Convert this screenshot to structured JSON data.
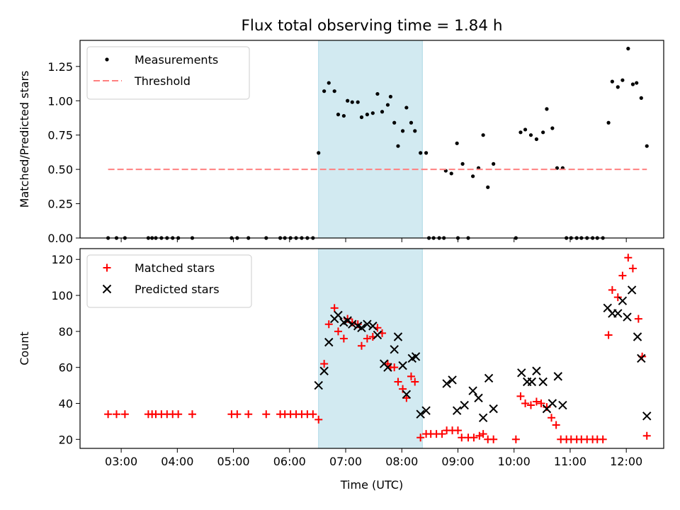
{
  "title": "Flux total observing time = 1.84 h",
  "chart_data": [
    {
      "type": "scatter",
      "ylabel": "Matched/Predicted stars",
      "xlabel": "",
      "xlim": [
        "02:16",
        "12:40"
      ],
      "ylim": [
        0,
        1.44
      ],
      "yticks": [
        0.0,
        0.25,
        0.5,
        0.75,
        1.0,
        1.25
      ],
      "ytick_labels": [
        "0.00",
        "0.25",
        "0.50",
        "0.75",
        "1.00",
        "1.25"
      ],
      "legend_position": "top-left",
      "legend": [
        "Measurements",
        "Threshold"
      ],
      "shaded_span": {
        "x": [
          "06:31",
          "08:22"
        ],
        "color": "#add8e6"
      },
      "series": [
        {
          "name": "Measurements",
          "marker": "dot",
          "color": "#000000",
          "points": [
            [
              "02:46",
              0
            ],
            [
              "02:55",
              0
            ],
            [
              "03:04",
              0
            ],
            [
              "03:29",
              0
            ],
            [
              "03:33",
              0
            ],
            [
              "03:37",
              0
            ],
            [
              "03:43",
              0
            ],
            [
              "03:49",
              0
            ],
            [
              "03:55",
              0
            ],
            [
              "04:01",
              0
            ],
            [
              "04:16",
              0
            ],
            [
              "04:58",
              0
            ],
            [
              "05:04",
              0
            ],
            [
              "05:16",
              0
            ],
            [
              "05:35",
              0
            ],
            [
              "05:50",
              0
            ],
            [
              "05:55",
              0
            ],
            [
              "06:01",
              0
            ],
            [
              "06:07",
              0
            ],
            [
              "06:13",
              0
            ],
            [
              "06:19",
              0
            ],
            [
              "06:25",
              0
            ],
            [
              "06:31",
              0.62
            ],
            [
              "06:37",
              1.07
            ],
            [
              "06:42",
              1.13
            ],
            [
              "06:48",
              1.07
            ],
            [
              "06:52",
              0.9
            ],
            [
              "06:58",
              0.89
            ],
            [
              "07:02",
              1.0
            ],
            [
              "07:07",
              0.99
            ],
            [
              "07:13",
              0.99
            ],
            [
              "07:17",
              0.88
            ],
            [
              "07:23",
              0.9
            ],
            [
              "07:29",
              0.91
            ],
            [
              "07:34",
              1.05
            ],
            [
              "07:39",
              0.92
            ],
            [
              "07:45",
              0.97
            ],
            [
              "07:48",
              1.03
            ],
            [
              "07:52",
              0.84
            ],
            [
              "07:56",
              0.67
            ],
            [
              "08:01",
              0.78
            ],
            [
              "08:05",
              0.95
            ],
            [
              "08:10",
              0.84
            ],
            [
              "08:14",
              0.78
            ],
            [
              "08:20",
              0.62
            ],
            [
              "08:26",
              0.62
            ],
            [
              "08:29",
              0
            ],
            [
              "08:34",
              0
            ],
            [
              "08:40",
              0
            ],
            [
              "08:45",
              0
            ],
            [
              "08:47",
              0.49
            ],
            [
              "08:53",
              0.47
            ],
            [
              "08:59",
              0.69
            ],
            [
              "09:00",
              0
            ],
            [
              "09:05",
              0.54
            ],
            [
              "09:11",
              0
            ],
            [
              "09:16",
              0.45
            ],
            [
              "09:22",
              0.51
            ],
            [
              "09:27",
              0.75
            ],
            [
              "09:32",
              0.37
            ],
            [
              "09:38",
              0.54
            ],
            [
              "10:02",
              0
            ],
            [
              "10:07",
              0.77
            ],
            [
              "10:12",
              0.79
            ],
            [
              "10:18",
              0.75
            ],
            [
              "10:24",
              0.72
            ],
            [
              "10:31",
              0.77
            ],
            [
              "10:35",
              0.94
            ],
            [
              "10:41",
              0.8
            ],
            [
              "10:46",
              0.51
            ],
            [
              "10:52",
              0.51
            ],
            [
              "10:56",
              0
            ],
            [
              "11:01",
              0
            ],
            [
              "11:07",
              0
            ],
            [
              "11:12",
              0
            ],
            [
              "11:18",
              0
            ],
            [
              "11:24",
              0
            ],
            [
              "11:29",
              0
            ],
            [
              "11:35",
              0
            ],
            [
              "11:41",
              0.84
            ],
            [
              "11:45",
              1.14
            ],
            [
              "11:51",
              1.1
            ],
            [
              "11:56",
              1.15
            ],
            [
              "12:02",
              1.38
            ],
            [
              "12:07",
              1.12
            ],
            [
              "12:11",
              1.13
            ],
            [
              "12:16",
              1.02
            ],
            [
              "12:22",
              0.67
            ]
          ]
        },
        {
          "name": "Threshold",
          "style": "dashed",
          "color": "#ff8080",
          "points": [
            [
              "02:46",
              0.5
            ],
            [
              "12:22",
              0.5
            ]
          ]
        }
      ]
    },
    {
      "type": "scatter",
      "ylabel": "Count",
      "xlabel": "Time (UTC)",
      "xlim": [
        "02:16",
        "12:40"
      ],
      "ylim": [
        15,
        126
      ],
      "yticks": [
        20,
        40,
        60,
        80,
        100,
        120
      ],
      "ytick_labels": [
        "20",
        "40",
        "60",
        "80",
        "100",
        "120"
      ],
      "xticks": [
        "03:00",
        "04:00",
        "05:00",
        "06:00",
        "07:00",
        "08:00",
        "09:00",
        "10:00",
        "11:00",
        "12:00"
      ],
      "legend_position": "top-left",
      "legend": [
        "Matched stars",
        "Predicted stars"
      ],
      "shaded_span": {
        "x": [
          "06:31",
          "08:22"
        ],
        "color": "#add8e6"
      },
      "series": [
        {
          "name": "Matched stars",
          "marker": "plus",
          "color": "#ff0000",
          "points": [
            [
              "02:46",
              34
            ],
            [
              "02:55",
              34
            ],
            [
              "03:04",
              34
            ],
            [
              "03:29",
              34
            ],
            [
              "03:33",
              34
            ],
            [
              "03:37",
              34
            ],
            [
              "03:43",
              34
            ],
            [
              "03:49",
              34
            ],
            [
              "03:55",
              34
            ],
            [
              "04:01",
              34
            ],
            [
              "04:16",
              34
            ],
            [
              "04:58",
              34
            ],
            [
              "05:04",
              34
            ],
            [
              "05:16",
              34
            ],
            [
              "05:35",
              34
            ],
            [
              "05:50",
              34
            ],
            [
              "05:55",
              34
            ],
            [
              "06:01",
              34
            ],
            [
              "06:07",
              34
            ],
            [
              "06:13",
              34
            ],
            [
              "06:19",
              34
            ],
            [
              "06:25",
              34
            ],
            [
              "06:31",
              31
            ],
            [
              "06:37",
              62
            ],
            [
              "06:42",
              84
            ],
            [
              "06:48",
              93
            ],
            [
              "06:52",
              80
            ],
            [
              "06:58",
              76
            ],
            [
              "07:02",
              87
            ],
            [
              "07:07",
              85
            ],
            [
              "07:13",
              84
            ],
            [
              "07:17",
              72
            ],
            [
              "07:23",
              76
            ],
            [
              "07:29",
              77
            ],
            [
              "07:34",
              82
            ],
            [
              "07:39",
              79
            ],
            [
              "07:45",
              62
            ],
            [
              "07:48",
              60
            ],
            [
              "07:52",
              60
            ],
            [
              "07:56",
              52
            ],
            [
              "08:01",
              48
            ],
            [
              "08:05",
              43
            ],
            [
              "08:10",
              55
            ],
            [
              "08:14",
              52
            ],
            [
              "08:20",
              21
            ],
            [
              "08:26",
              23
            ],
            [
              "08:31",
              23
            ],
            [
              "08:37",
              23
            ],
            [
              "08:43",
              23
            ],
            [
              "08:48",
              25
            ],
            [
              "08:54",
              25
            ],
            [
              "09:00",
              25
            ],
            [
              "09:04",
              21
            ],
            [
              "09:11",
              21
            ],
            [
              "09:17",
              21
            ],
            [
              "09:23",
              22
            ],
            [
              "09:27",
              23
            ],
            [
              "09:32",
              20
            ],
            [
              "09:38",
              20
            ],
            [
              "10:02",
              20
            ],
            [
              "10:07",
              44
            ],
            [
              "10:12",
              40
            ],
            [
              "10:18",
              39
            ],
            [
              "10:24",
              41
            ],
            [
              "10:29",
              40
            ],
            [
              "10:35",
              38
            ],
            [
              "10:40",
              32
            ],
            [
              "10:45",
              28
            ],
            [
              "10:50",
              20
            ],
            [
              "10:56",
              20
            ],
            [
              "11:01",
              20
            ],
            [
              "11:07",
              20
            ],
            [
              "11:12",
              20
            ],
            [
              "11:18",
              20
            ],
            [
              "11:24",
              20
            ],
            [
              "11:29",
              20
            ],
            [
              "11:35",
              20
            ],
            [
              "11:41",
              78
            ],
            [
              "11:45",
              103
            ],
            [
              "11:51",
              99
            ],
            [
              "11:56",
              111
            ],
            [
              "12:02",
              121
            ],
            [
              "12:07",
              115
            ],
            [
              "12:13",
              87
            ],
            [
              "12:17",
              66
            ],
            [
              "12:22",
              22
            ]
          ]
        },
        {
          "name": "Predicted stars",
          "marker": "x",
          "color": "#000000",
          "points": [
            [
              "06:31",
              50
            ],
            [
              "06:37",
              58
            ],
            [
              "06:42",
              74
            ],
            [
              "06:48",
              87
            ],
            [
              "06:52",
              89
            ],
            [
              "06:58",
              85
            ],
            [
              "07:02",
              86
            ],
            [
              "07:07",
              84
            ],
            [
              "07:13",
              83
            ],
            [
              "07:17",
              82
            ],
            [
              "07:23",
              84
            ],
            [
              "07:29",
              83
            ],
            [
              "07:34",
              78
            ],
            [
              "07:41",
              62
            ],
            [
              "07:45",
              60
            ],
            [
              "07:52",
              70
            ],
            [
              "07:56",
              77
            ],
            [
              "08:01",
              61
            ],
            [
              "08:05",
              45
            ],
            [
              "08:11",
              65
            ],
            [
              "08:15",
              66
            ],
            [
              "08:20",
              34
            ],
            [
              "08:26",
              36
            ],
            [
              "08:48",
              51
            ],
            [
              "08:54",
              53
            ],
            [
              "08:59",
              36
            ],
            [
              "09:07",
              39
            ],
            [
              "09:16",
              47
            ],
            [
              "09:22",
              43
            ],
            [
              "09:27",
              32
            ],
            [
              "09:33",
              54
            ],
            [
              "09:38",
              37
            ],
            [
              "10:08",
              57
            ],
            [
              "10:14",
              52
            ],
            [
              "10:19",
              52
            ],
            [
              "10:24",
              58
            ],
            [
              "10:31",
              52
            ],
            [
              "10:35",
              37
            ],
            [
              "10:41",
              40
            ],
            [
              "10:47",
              55
            ],
            [
              "10:52",
              39
            ],
            [
              "11:40",
              93
            ],
            [
              "11:45",
              90
            ],
            [
              "11:51",
              90
            ],
            [
              "11:56",
              97
            ],
            [
              "12:01",
              88
            ],
            [
              "12:06",
              103
            ],
            [
              "12:12",
              77
            ],
            [
              "12:16",
              65
            ],
            [
              "12:22",
              33
            ]
          ]
        }
      ]
    }
  ]
}
